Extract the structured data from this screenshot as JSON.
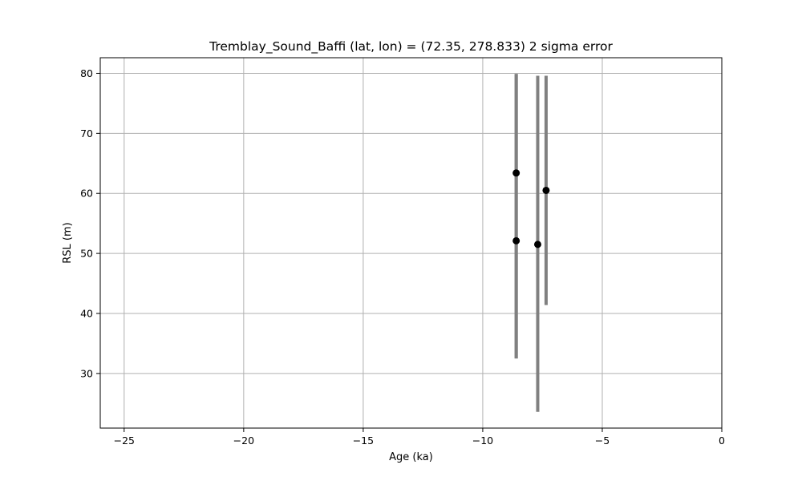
{
  "chart_data": {
    "type": "scatter",
    "title": "Tremblay_Sound_Baffi (lat, lon) = (72.35, 278.833)  2 sigma error",
    "xlabel": "Age (ka)",
    "ylabel": "RSL (m)",
    "xlim": [
      -26,
      0
    ],
    "ylim": [
      20.9,
      82.6
    ],
    "xticks": [
      -25,
      -20,
      -15,
      -10,
      -5,
      0
    ],
    "yticks": [
      30,
      40,
      50,
      60,
      70,
      80
    ],
    "xtick_labels": [
      "−25",
      "−20",
      "−15",
      "−10",
      "−5",
      "0"
    ],
    "ytick_labels": [
      "30",
      "40",
      "50",
      "60",
      "70",
      "80"
    ],
    "grid": true,
    "point_color": "#000000",
    "errorbar_color": "#808080",
    "points": [
      {
        "x": -8.6,
        "y": 63.4,
        "yerr_low": 32.5,
        "yerr_high": 79.9
      },
      {
        "x": -8.6,
        "y": 52.1,
        "yerr_low": 32.5,
        "yerr_high": 79.9
      },
      {
        "x": -7.7,
        "y": 51.5,
        "yerr_low": 23.6,
        "yerr_high": 79.6
      },
      {
        "x": -7.35,
        "y": 60.5,
        "yerr_low": 41.4,
        "yerr_high": 79.6
      }
    ]
  }
}
